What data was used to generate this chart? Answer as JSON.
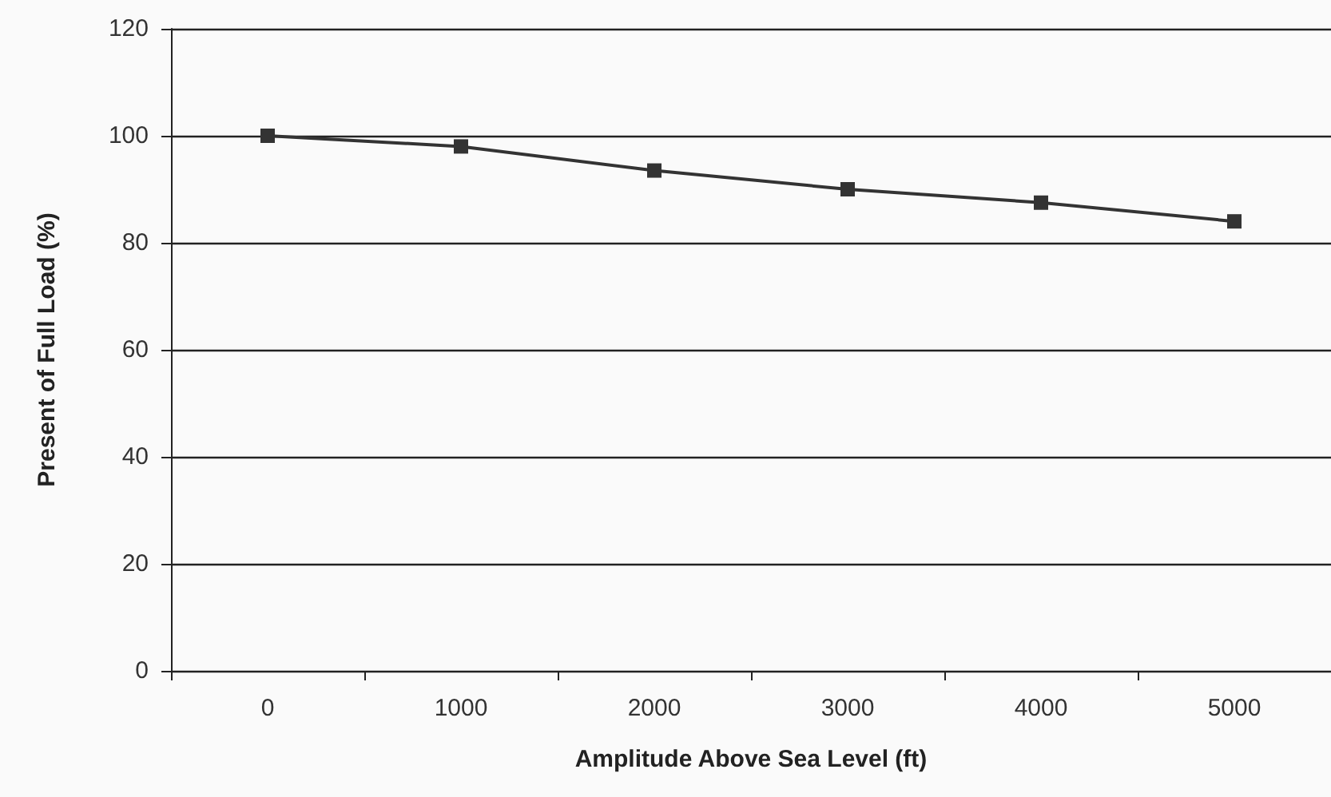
{
  "chart_data": {
    "type": "line",
    "xlabel": "Amplitude Above Sea Level (ft)",
    "ylabel": "Present of Full Load (%)",
    "categories": [
      "0",
      "1000",
      "2000",
      "3000",
      "4000",
      "5000"
    ],
    "series": [
      {
        "color": "#333333",
        "values": [
          100,
          98,
          93.5,
          90,
          87.5,
          84
        ]
      }
    ],
    "ylim": [
      0,
      120
    ],
    "yticks": [
      0,
      20,
      40,
      60,
      80,
      100,
      120
    ],
    "grid": "y",
    "marker": "square",
    "line_style": "solid"
  }
}
